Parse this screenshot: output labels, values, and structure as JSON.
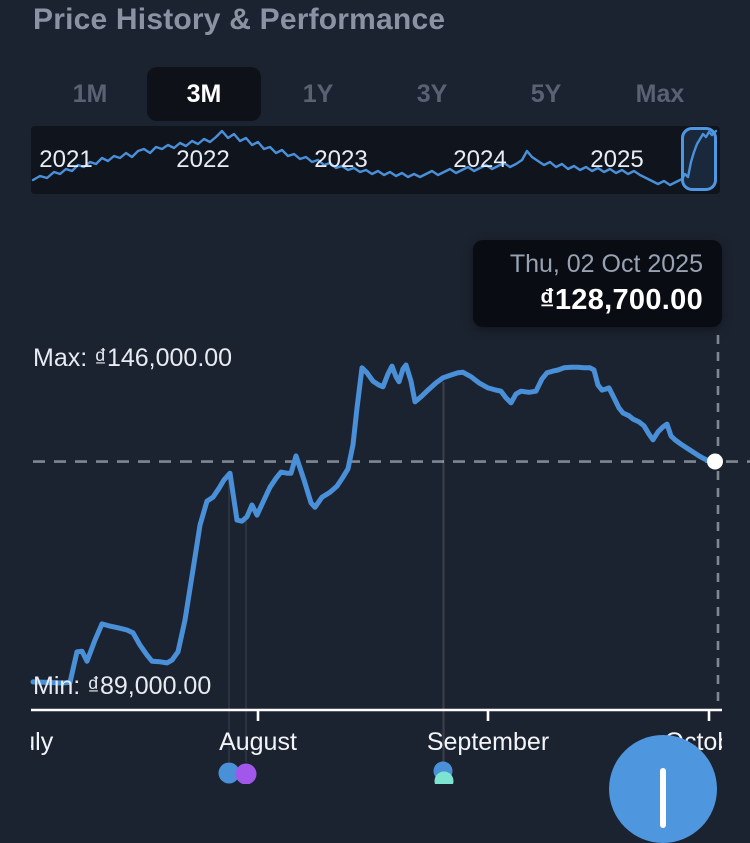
{
  "header": {
    "title": "Price History & Performance"
  },
  "tabs": {
    "items": [
      {
        "label": "1M",
        "selected": false
      },
      {
        "label": "3M",
        "selected": true
      },
      {
        "label": "1Y",
        "selected": false
      },
      {
        "label": "3Y",
        "selected": false
      },
      {
        "label": "5Y",
        "selected": false
      },
      {
        "label": "Max",
        "selected": false
      }
    ]
  },
  "overview": {
    "years": [
      "2021",
      "2022",
      "2023",
      "2024",
      "2025"
    ],
    "points": [
      [
        33,
        180
      ],
      [
        40,
        176
      ],
      [
        47,
        178
      ],
      [
        54,
        172
      ],
      [
        60,
        174
      ],
      [
        66,
        169
      ],
      [
        72,
        171
      ],
      [
        78,
        165
      ],
      [
        84,
        167
      ],
      [
        90,
        162
      ],
      [
        96,
        164
      ],
      [
        102,
        158
      ],
      [
        108,
        161
      ],
      [
        114,
        156
      ],
      [
        120,
        158
      ],
      [
        126,
        153
      ],
      [
        132,
        157
      ],
      [
        138,
        151
      ],
      [
        144,
        149
      ],
      [
        150,
        153
      ],
      [
        156,
        147
      ],
      [
        162,
        149
      ],
      [
        168,
        145
      ],
      [
        174,
        148
      ],
      [
        180,
        143
      ],
      [
        186,
        146
      ],
      [
        192,
        141
      ],
      [
        198,
        144
      ],
      [
        204,
        139
      ],
      [
        210,
        142
      ],
      [
        216,
        137
      ],
      [
        222,
        131
      ],
      [
        228,
        138
      ],
      [
        234,
        134
      ],
      [
        240,
        141
      ],
      [
        246,
        138
      ],
      [
        252,
        145
      ],
      [
        258,
        142
      ],
      [
        264,
        149
      ],
      [
        270,
        147
      ],
      [
        276,
        153
      ],
      [
        282,
        150
      ],
      [
        288,
        156
      ],
      [
        294,
        154
      ],
      [
        300,
        159
      ],
      [
        306,
        157
      ],
      [
        312,
        162
      ],
      [
        318,
        160
      ],
      [
        324,
        165
      ],
      [
        330,
        163
      ],
      [
        336,
        168
      ],
      [
        342,
        166
      ],
      [
        348,
        170
      ],
      [
        354,
        168
      ],
      [
        360,
        172
      ],
      [
        366,
        170
      ],
      [
        372,
        174
      ],
      [
        378,
        171
      ],
      [
        384,
        175
      ],
      [
        390,
        172
      ],
      [
        396,
        176
      ],
      [
        402,
        173
      ],
      [
        408,
        177
      ],
      [
        414,
        174
      ],
      [
        420,
        177
      ],
      [
        426,
        174
      ],
      [
        432,
        171
      ],
      [
        438,
        175
      ],
      [
        444,
        172
      ],
      [
        450,
        169
      ],
      [
        456,
        173
      ],
      [
        462,
        170
      ],
      [
        468,
        167
      ],
      [
        474,
        171
      ],
      [
        480,
        168
      ],
      [
        486,
        165
      ],
      [
        492,
        169
      ],
      [
        498,
        166
      ],
      [
        504,
        163
      ],
      [
        510,
        167
      ],
      [
        516,
        164
      ],
      [
        522,
        160
      ],
      [
        527,
        151
      ],
      [
        532,
        157
      ],
      [
        538,
        161
      ],
      [
        544,
        165
      ],
      [
        550,
        162
      ],
      [
        556,
        167
      ],
      [
        562,
        164
      ],
      [
        568,
        169
      ],
      [
        574,
        166
      ],
      [
        580,
        170
      ],
      [
        586,
        167
      ],
      [
        592,
        171
      ],
      [
        598,
        168
      ],
      [
        604,
        172
      ],
      [
        610,
        169
      ],
      [
        616,
        173
      ],
      [
        622,
        170
      ],
      [
        628,
        174
      ],
      [
        634,
        171
      ],
      [
        640,
        175
      ],
      [
        646,
        178
      ],
      [
        652,
        181
      ],
      [
        658,
        184
      ],
      [
        664,
        181
      ],
      [
        670,
        185
      ],
      [
        676,
        182
      ],
      [
        682,
        179
      ],
      [
        685,
        174
      ],
      [
        688,
        177
      ],
      [
        691,
        162
      ],
      [
        694,
        152
      ],
      [
        697,
        144
      ],
      [
        700,
        139
      ],
      [
        703,
        134
      ],
      [
        706,
        137
      ],
      [
        709,
        132
      ],
      [
        712,
        135
      ],
      [
        716,
        131
      ]
    ]
  },
  "tooltip": {
    "date": "Thu, 02 Oct 2025",
    "price": "₫128,700.00"
  },
  "chart_data": {
    "type": "line",
    "title": "Price History & Performance (3M range)",
    "currency": "VND",
    "y_range": {
      "min": 89000,
      "max": 146000
    },
    "max_label": "Max: ₫146,000.00",
    "min_label": "Min: ₫89,000.00",
    "current": {
      "date": "Thu, 02 Oct 2025",
      "price": 128700
    },
    "x_axis": {
      "labels": [
        "July",
        "August",
        "September",
        "October"
      ],
      "tick_x": [
        31,
        258,
        488,
        709
      ]
    },
    "legend": "none",
    "grid": "off",
    "series": [
      {
        "name": "price",
        "color": "#4a90d9",
        "points": [
          [
            33,
            89200
          ],
          [
            48,
            89100
          ],
          [
            62,
            89000
          ],
          [
            70,
            89100
          ],
          [
            77,
            94600
          ],
          [
            82,
            94700
          ],
          [
            87,
            92900
          ],
          [
            95,
            96700
          ],
          [
            102,
            99600
          ],
          [
            110,
            99200
          ],
          [
            118,
            98900
          ],
          [
            127,
            98500
          ],
          [
            133,
            98000
          ],
          [
            140,
            95800
          ],
          [
            147,
            94000
          ],
          [
            152,
            92900
          ],
          [
            160,
            92800
          ],
          [
            167,
            92600
          ],
          [
            172,
            93100
          ],
          [
            178,
            94600
          ],
          [
            185,
            100300
          ],
          [
            193,
            109300
          ],
          [
            200,
            117300
          ],
          [
            207,
            121600
          ],
          [
            213,
            122300
          ],
          [
            219,
            123900
          ],
          [
            224,
            125400
          ],
          [
            230,
            126600
          ],
          [
            237,
            118200
          ],
          [
            242,
            118000
          ],
          [
            247,
            118800
          ],
          [
            252,
            120900
          ],
          [
            257,
            119100
          ],
          [
            264,
            121800
          ],
          [
            270,
            124100
          ],
          [
            276,
            125700
          ],
          [
            281,
            126800
          ],
          [
            287,
            126600
          ],
          [
            291,
            126600
          ],
          [
            296,
            129700
          ],
          [
            304,
            125400
          ],
          [
            311,
            121300
          ],
          [
            315,
            120500
          ],
          [
            322,
            122300
          ],
          [
            330,
            123200
          ],
          [
            337,
            124300
          ],
          [
            343,
            125900
          ],
          [
            348,
            127400
          ],
          [
            353,
            131700
          ],
          [
            357,
            138300
          ],
          [
            362,
            145500
          ],
          [
            367,
            144600
          ],
          [
            373,
            143100
          ],
          [
            379,
            142400
          ],
          [
            383,
            142100
          ],
          [
            388,
            144400
          ],
          [
            392,
            145800
          ],
          [
            396,
            143900
          ],
          [
            399,
            143000
          ],
          [
            403,
            145300
          ],
          [
            406,
            146000
          ],
          [
            411,
            143100
          ],
          [
            415,
            139400
          ],
          [
            421,
            140300
          ],
          [
            428,
            141500
          ],
          [
            436,
            142800
          ],
          [
            443,
            143700
          ],
          [
            451,
            144200
          ],
          [
            458,
            144600
          ],
          [
            463,
            144700
          ],
          [
            471,
            143900
          ],
          [
            479,
            142800
          ],
          [
            488,
            141900
          ],
          [
            496,
            141500
          ],
          [
            501,
            141300
          ],
          [
            506,
            140100
          ],
          [
            511,
            139200
          ],
          [
            516,
            140800
          ],
          [
            521,
            141300
          ],
          [
            529,
            141100
          ],
          [
            536,
            141300
          ],
          [
            542,
            143500
          ],
          [
            547,
            144600
          ],
          [
            553,
            144900
          ],
          [
            558,
            145100
          ],
          [
            564,
            145500
          ],
          [
            571,
            145600
          ],
          [
            578,
            145600
          ],
          [
            584,
            145500
          ],
          [
            590,
            145500
          ],
          [
            594,
            145100
          ],
          [
            598,
            142400
          ],
          [
            602,
            141500
          ],
          [
            606,
            141700
          ],
          [
            609,
            141900
          ],
          [
            614,
            140100
          ],
          [
            619,
            138300
          ],
          [
            623,
            137400
          ],
          [
            629,
            136900
          ],
          [
            633,
            136300
          ],
          [
            639,
            135800
          ],
          [
            644,
            135100
          ],
          [
            649,
            133600
          ],
          [
            653,
            132600
          ],
          [
            658,
            134000
          ],
          [
            663,
            134900
          ],
          [
            667,
            135400
          ],
          [
            671,
            133300
          ],
          [
            675,
            132600
          ],
          [
            681,
            131800
          ],
          [
            687,
            131100
          ],
          [
            693,
            130400
          ],
          [
            699,
            129700
          ],
          [
            704,
            129200
          ],
          [
            709,
            128800
          ],
          [
            715,
            128700
          ]
        ]
      }
    ],
    "markers": [
      {
        "x": 229,
        "dot_y": 773,
        "r": 10.5,
        "color": "#4a90d9",
        "name": "event-marker-blue"
      },
      {
        "x": 246,
        "dot_y": 774,
        "r": 10.5,
        "color": "#a158ea",
        "name": "event-marker-purple"
      },
      {
        "x": 443,
        "dot_y": 771,
        "r": 9.5,
        "color": "#4a90d9",
        "name": "event-marker-blue"
      },
      {
        "x": 444,
        "dot_y": 781,
        "r": 9.5,
        "color": "#7de4d1",
        "name": "event-marker-teal"
      }
    ]
  },
  "colors": {
    "background": "#1c2330",
    "line": "#4a90d9",
    "dashed": "#7f8793",
    "fab": "#4e96dd",
    "tab_selected_bg": "#0e1118"
  }
}
